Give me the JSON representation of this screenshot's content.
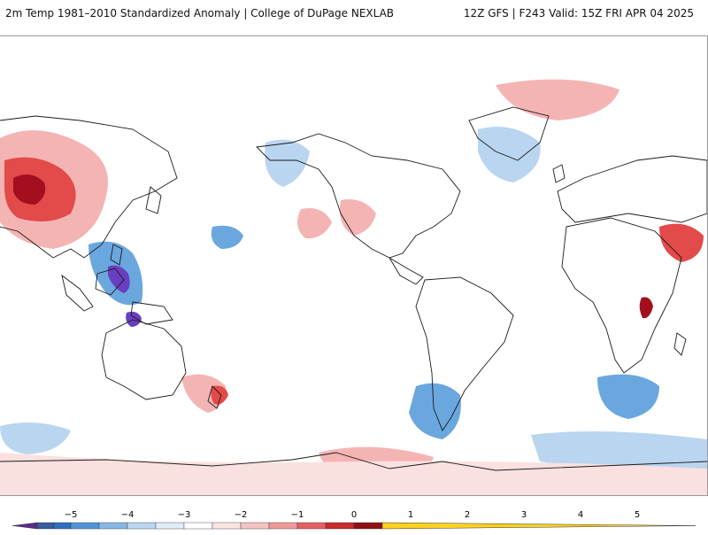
{
  "header": {
    "title_left": "2m Temp 1981–2010 Standardized Anomaly | College of DuPage NEXLAB",
    "title_right": "12Z GFS | F243 Valid: 15Z FRI APR 04 2025"
  },
  "map": {
    "field": "2m temperature standardized anomaly",
    "projection": "equirectangular global",
    "land_outline_color": "#1a1a1a",
    "palette": {
      "very_cold": "#6a3fbf",
      "cold_dark": "#2f68c8",
      "cold": "#6aa7df",
      "cool": "#b9d5f0",
      "slightly_cool": "#dde9f7",
      "slightly_warm": "#fbe0e0",
      "warm": "#f5b4b4",
      "hot": "#e34a4a",
      "very_hot": "#a30f1e"
    }
  },
  "colorbar": {
    "ticks": [
      "−5",
      "−4",
      "−3",
      "−2",
      "−1",
      "0",
      "1",
      "2",
      "3",
      "4",
      "5"
    ],
    "colors": [
      "#5b2b8a",
      "#3a5b9c",
      "#2e6fbf",
      "#4f95d6",
      "#86b8e6",
      "#bcd6f1",
      "#e1ecf8",
      "#ffffff",
      "#fbe4e4",
      "#f6c3c3",
      "#ef9a9a",
      "#e36262",
      "#c92a2a",
      "#8f0f16",
      "#ffd21f"
    ]
  }
}
